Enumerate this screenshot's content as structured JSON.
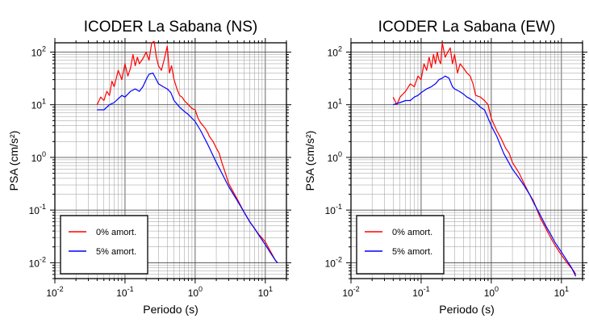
{
  "chart_data": [
    {
      "type": "line",
      "title": "ICODER La Sabana (NS)",
      "xlabel": "Periodo (s)",
      "ylabel": "PSA (cm/s²)",
      "xscale": "log",
      "yscale": "log",
      "xlim": [
        0.01,
        20
      ],
      "ylim": [
        0.005,
        150
      ],
      "xticks": [
        0.01,
        0.1,
        1,
        10
      ],
      "yticks": [
        0.01,
        0.1,
        1,
        10,
        100
      ],
      "grid": true,
      "legend_position": "bottom-left",
      "series": [
        {
          "name": "0% amort.",
          "color": "#ff0000",
          "x": [
            0.04,
            0.045,
            0.05,
            0.055,
            0.06,
            0.065,
            0.07,
            0.08,
            0.09,
            0.1,
            0.11,
            0.12,
            0.13,
            0.14,
            0.15,
            0.16,
            0.18,
            0.2,
            0.22,
            0.24,
            0.26,
            0.28,
            0.3,
            0.33,
            0.36,
            0.4,
            0.43,
            0.46,
            0.5,
            0.55,
            0.6,
            0.65,
            0.7,
            0.8,
            0.9,
            1.0,
            1.1,
            1.2,
            1.3,
            1.4,
            1.5,
            1.6,
            1.8,
            2.0,
            2.2,
            2.4,
            2.7,
            3.0,
            3.5,
            4.0,
            5.0,
            6.0,
            7.0,
            8.0,
            10.0,
            12.0,
            14.0,
            15.0
          ],
          "y": [
            10,
            14,
            12,
            18,
            15,
            28,
            22,
            45,
            30,
            60,
            35,
            50,
            90,
            55,
            80,
            60,
            75,
            100,
            70,
            150,
            160,
            80,
            55,
            45,
            70,
            130,
            40,
            55,
            30,
            20,
            15,
            14,
            12,
            10,
            8.5,
            8,
            5.5,
            4.5,
            4.0,
            3.5,
            3.0,
            2.5,
            2.0,
            1.5,
            1.2,
            0.8,
            0.5,
            0.32,
            0.22,
            0.16,
            0.09,
            0.06,
            0.045,
            0.035,
            0.025,
            0.016,
            0.011,
            0.01
          ]
        },
        {
          "name": "5% amort.",
          "color": "#0000ff",
          "x": [
            0.04,
            0.05,
            0.06,
            0.07,
            0.08,
            0.09,
            0.1,
            0.12,
            0.14,
            0.16,
            0.18,
            0.2,
            0.22,
            0.25,
            0.28,
            0.3,
            0.35,
            0.4,
            0.45,
            0.5,
            0.6,
            0.7,
            0.8,
            1.0,
            1.2,
            1.5,
            2.0,
            2.5,
            3.0,
            3.5,
            4.0,
            5.0,
            6.0,
            7.0,
            8.0,
            10.0,
            12.0,
            14.0,
            15.0
          ],
          "y": [
            8,
            8,
            10,
            11,
            13,
            15,
            14,
            18,
            20,
            18,
            22,
            30,
            38,
            40,
            30,
            25,
            22,
            20,
            17,
            12,
            9,
            7.5,
            6.5,
            4.8,
            3.2,
            1.8,
            0.8,
            0.45,
            0.28,
            0.2,
            0.15,
            0.09,
            0.06,
            0.045,
            0.034,
            0.022,
            0.015,
            0.011,
            0.01
          ]
        }
      ]
    },
    {
      "type": "line",
      "title": "ICODER La Sabana (EW)",
      "xlabel": "Periodo (s)",
      "ylabel": "PSA (cm/s²)",
      "xscale": "log",
      "yscale": "log",
      "xlim": [
        0.01,
        20
      ],
      "ylim": [
        0.005,
        150
      ],
      "xticks": [
        0.01,
        0.1,
        1,
        10
      ],
      "yticks": [
        0.01,
        0.1,
        1,
        10,
        100
      ],
      "grid": true,
      "legend_position": "bottom-left",
      "series": [
        {
          "name": "0% amort.",
          "color": "#ff0000",
          "x": [
            0.04,
            0.045,
            0.05,
            0.06,
            0.07,
            0.08,
            0.09,
            0.1,
            0.11,
            0.12,
            0.13,
            0.14,
            0.15,
            0.16,
            0.17,
            0.18,
            0.19,
            0.2,
            0.22,
            0.24,
            0.26,
            0.28,
            0.3,
            0.33,
            0.36,
            0.4,
            0.45,
            0.5,
            0.55,
            0.6,
            0.7,
            0.8,
            0.9,
            1.0,
            1.2,
            1.4,
            1.6,
            1.8,
            2.0,
            2.5,
            3.0,
            3.5,
            4.0,
            5.0,
            6.0,
            7.0,
            8.0,
            10.0,
            12.0,
            15.0,
            16.0
          ],
          "y": [
            14,
            10,
            14,
            18,
            25,
            22,
            35,
            30,
            60,
            45,
            80,
            50,
            90,
            60,
            100,
            70,
            60,
            150,
            80,
            100,
            120,
            60,
            90,
            40,
            60,
            50,
            40,
            35,
            25,
            15,
            14,
            12,
            10,
            5.5,
            3.2,
            2.2,
            1.5,
            1.2,
            0.8,
            0.5,
            0.3,
            0.2,
            0.15,
            0.07,
            0.045,
            0.03,
            0.022,
            0.014,
            0.01,
            0.007,
            0.006
          ]
        },
        {
          "name": "5% amort.",
          "color": "#0000ff",
          "x": [
            0.04,
            0.05,
            0.06,
            0.07,
            0.08,
            0.09,
            0.1,
            0.12,
            0.14,
            0.16,
            0.18,
            0.2,
            0.22,
            0.25,
            0.28,
            0.3,
            0.35,
            0.4,
            0.45,
            0.5,
            0.6,
            0.7,
            0.8,
            1.0,
            1.2,
            1.5,
            2.0,
            2.5,
            3.0,
            3.5,
            4.0,
            5.0,
            6.0,
            7.0,
            8.0,
            10.0,
            12.0,
            14.0,
            16.0
          ],
          "y": [
            10,
            11,
            12,
            12,
            14,
            15,
            17,
            20,
            22,
            25,
            30,
            32,
            35,
            32,
            22,
            20,
            18,
            16,
            14,
            13,
            11,
            9,
            8,
            4.0,
            2.5,
            1.2,
            0.6,
            0.4,
            0.28,
            0.2,
            0.14,
            0.08,
            0.05,
            0.035,
            0.025,
            0.016,
            0.011,
            0.008,
            0.0055
          ]
        }
      ]
    }
  ]
}
